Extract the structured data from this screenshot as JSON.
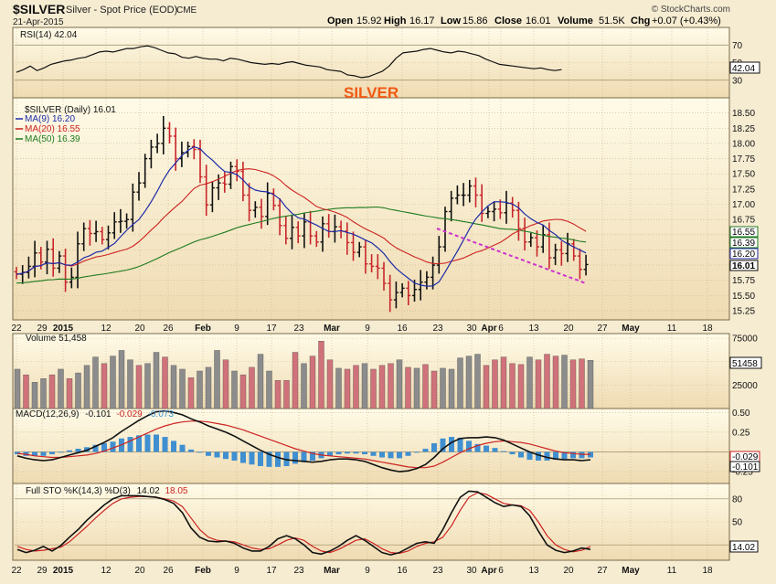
{
  "header": {
    "symbol": "$SILVER",
    "description": "Silver - Spot Price (EOD)",
    "exchange": "CME",
    "date": "21-Apr-2015",
    "brand": "© StockCharts.com",
    "ohlc": {
      "open_label": "Open",
      "open": "15.92",
      "high_label": "High",
      "high": "16.17",
      "low_label": "Low",
      "low": "15.86",
      "close_label": "Close",
      "close": "16.01",
      "volume_label": "Volume",
      "volume": "51.5K",
      "chg_label": "Chg",
      "chg": "+0.07 (+0.43%)"
    }
  },
  "annotation_text": "SILVER",
  "colors": {
    "background": "#f6ecd2",
    "panel_top": "#fffbe8",
    "panel_bottom": "#efdbb2",
    "up_bar": "#111111",
    "down_bar": "#c8262b",
    "ma9": "#1c2aa8",
    "ma20": "#cc2222",
    "ma50": "#1e7a1e",
    "volume_up": "#8c8c8c",
    "volume_down": "#d0727a",
    "histogram": "#3f8fd1",
    "trendline": "#cc33cc",
    "annotation": "#f05a14",
    "grid": "#c9b48a"
  },
  "x_axis": {
    "labels": [
      "22",
      "29",
      "2015",
      "12",
      "20",
      "26",
      "Feb",
      "9",
      "17",
      "23",
      "Mar",
      "9",
      "16",
      "23",
      "30",
      "Apr",
      "6",
      "13",
      "20",
      "27",
      "May",
      "11",
      "18"
    ],
    "bold_labels": [
      "2015",
      "Feb",
      "Mar",
      "Apr",
      "May"
    ]
  },
  "chart_data": [
    {
      "id": "rsi",
      "type": "line",
      "title": "RSI(14) 42.04",
      "last_value_label": "42.04",
      "ylim": [
        10,
        90
      ],
      "ticks": [
        "90",
        "70",
        "50",
        "30",
        "10"
      ],
      "values": [
        39,
        42,
        46,
        41,
        44,
        48,
        50,
        52,
        53,
        55,
        56,
        59,
        62,
        63,
        62,
        64,
        66,
        66,
        68,
        69,
        67,
        64,
        61,
        60,
        56,
        55,
        57,
        55,
        54,
        54,
        52,
        55,
        54,
        52,
        50,
        49,
        48,
        49,
        48,
        50,
        51,
        49,
        47,
        46,
        45,
        42,
        41,
        40,
        36,
        35,
        33,
        34,
        37,
        40,
        46,
        55,
        61,
        62,
        63,
        65,
        66,
        64,
        62,
        61,
        63,
        62,
        60,
        58,
        54,
        51,
        48,
        47,
        46,
        45,
        44,
        43,
        44,
        42,
        41,
        42
      ]
    },
    {
      "id": "price",
      "type": "ohlc",
      "title": "$SILVER (Daily) 16.01",
      "ylim": [
        15.1,
        18.75
      ],
      "ticks": [
        "18.50",
        "18.25",
        "18.00",
        "17.75",
        "17.50",
        "17.25",
        "17.00",
        "16.75",
        "16.50",
        "16.25",
        "16.00",
        "15.75",
        "15.50",
        "15.25"
      ],
      "series": [
        {
          "name": "MA(9)",
          "label": "MA(9) 16.20",
          "color": "#1c2aa8",
          "value_tag": "16.20"
        },
        {
          "name": "MA(20)",
          "label": "MA(20) 16.55",
          "color": "#cc2222",
          "value_tag": "16.55"
        },
        {
          "name": "MA(50)",
          "label": "MA(50) 16.39",
          "color": "#1e7a1e",
          "value_tag": "16.39"
        }
      ],
      "close_tag": "16.01",
      "close": [
        15.85,
        15.88,
        15.98,
        16.2,
        16.05,
        16.26,
        15.95,
        16.15,
        15.72,
        15.8,
        16.35,
        16.6,
        16.52,
        16.55,
        16.42,
        16.53,
        16.71,
        16.72,
        16.75,
        17.2,
        17.35,
        17.75,
        17.94,
        18.0,
        18.25,
        18.12,
        17.75,
        17.85,
        17.95,
        17.9,
        17.45,
        16.99,
        17.27,
        17.35,
        17.33,
        17.62,
        17.54,
        17.15,
        16.9,
        16.95,
        16.8,
        17.18,
        16.98,
        16.65,
        16.44,
        16.62,
        16.48,
        16.71,
        16.48,
        16.38,
        16.68,
        16.55,
        16.63,
        16.56,
        16.37,
        16.21,
        16.3,
        16.02,
        15.98,
        15.95,
        15.7,
        15.43,
        15.55,
        15.62,
        15.5,
        15.6,
        15.72,
        15.8,
        16.0,
        16.3,
        16.88,
        17.1,
        17.15,
        17.15,
        17.3,
        17.15,
        16.85,
        16.88,
        16.92,
        16.86,
        17.02,
        16.9,
        16.6,
        16.38,
        16.45,
        16.3,
        16.5,
        16.12,
        16.25,
        16.19,
        16.35,
        16.15,
        15.93,
        16.01
      ]
    },
    {
      "id": "volume",
      "type": "bar",
      "title": "Volume 51,458",
      "last_value_label": "51458",
      "ylim": [
        0,
        80000
      ],
      "ticks": [
        "75000",
        "50000",
        "25000"
      ],
      "values": [
        42000,
        36000,
        28000,
        32000,
        36000,
        42000,
        32000,
        38000,
        46000,
        55000,
        48000,
        56000,
        62000,
        52000,
        46000,
        48000,
        60000,
        55000,
        46000,
        42000,
        33000,
        40000,
        44000,
        62000,
        52000,
        40000,
        36000,
        44000,
        58000,
        40000,
        30000,
        30000,
        60000,
        48000,
        56000,
        72000,
        52000,
        43000,
        42000,
        46000,
        48000,
        42000,
        46000,
        48000,
        52000,
        44000,
        43000,
        47000,
        40000,
        43000,
        42000,
        54000,
        56000,
        58000,
        46000,
        52000,
        55000,
        48000,
        47000,
        55000,
        52000,
        58000,
        56000,
        57000,
        52000,
        53000,
        51458
      ],
      "up": [
        true,
        false,
        true,
        true,
        false,
        true,
        false,
        true,
        true,
        true,
        false,
        true,
        true,
        true,
        false,
        true,
        true,
        false,
        true,
        true,
        false,
        true,
        true,
        true,
        false,
        true,
        false,
        false,
        true,
        true,
        false,
        false,
        false,
        true,
        false,
        false,
        false,
        true,
        false,
        false,
        true,
        false,
        false,
        false,
        true,
        false,
        true,
        false,
        false,
        true,
        true,
        true,
        true,
        true,
        false,
        false,
        false,
        false,
        false,
        true,
        false,
        false,
        false,
        true,
        false,
        false,
        true
      ]
    },
    {
      "id": "macd",
      "type": "line",
      "title": "MACD(12,26,9) -0.101, -0.029, -0.073",
      "title_parts": {
        "name": "MACD(12,26,9)",
        "macd": "-0.101",
        "signal": "-0.029",
        "hist": "-0.073"
      },
      "ylim": [
        -0.4,
        0.55
      ],
      "ticks": [
        "0.50",
        "0.25",
        "-0.25"
      ],
      "value_tags": [
        "-0.029",
        "-0.101"
      ],
      "macd": [
        -0.05,
        -0.08,
        -0.1,
        -0.11,
        -0.1,
        -0.07,
        -0.04,
        -0.01,
        0.02,
        0.07,
        0.12,
        0.18,
        0.26,
        0.33,
        0.4,
        0.46,
        0.51,
        0.52,
        0.5,
        0.47,
        0.42,
        0.38,
        0.33,
        0.29,
        0.25,
        0.2,
        0.14,
        0.08,
        0.02,
        -0.03,
        -0.07,
        -0.1,
        -0.11,
        -0.12,
        -0.13,
        -0.12,
        -0.1,
        -0.09,
        -0.09,
        -0.1,
        -0.12,
        -0.16,
        -0.2,
        -0.23,
        -0.25,
        -0.24,
        -0.21,
        -0.16,
        -0.07,
        0.04,
        0.12,
        0.17,
        0.18,
        0.18,
        0.19,
        0.18,
        0.15,
        0.1,
        0.05,
        0.0,
        -0.04,
        -0.07,
        -0.09,
        -0.1,
        -0.1,
        -0.11,
        -0.1
      ],
      "signal": [
        -0.02,
        -0.03,
        -0.05,
        -0.06,
        -0.07,
        -0.07,
        -0.06,
        -0.05,
        -0.04,
        -0.02,
        0.01,
        0.05,
        0.09,
        0.14,
        0.19,
        0.24,
        0.29,
        0.33,
        0.36,
        0.38,
        0.39,
        0.39,
        0.38,
        0.36,
        0.34,
        0.31,
        0.28,
        0.24,
        0.2,
        0.16,
        0.12,
        0.08,
        0.04,
        0.01,
        -0.02,
        -0.04,
        -0.05,
        -0.06,
        -0.07,
        -0.08,
        -0.09,
        -0.11,
        -0.13,
        -0.15,
        -0.17,
        -0.19,
        -0.2,
        -0.2,
        -0.18,
        -0.13,
        -0.07,
        -0.01,
        0.04,
        0.08,
        0.11,
        0.13,
        0.14,
        0.13,
        0.12,
        0.1,
        0.07,
        0.04,
        0.01,
        -0.01,
        -0.02,
        -0.03,
        -0.03
      ]
    },
    {
      "id": "sto",
      "type": "line",
      "title": "Full STO %K(14,3) %D(3) 14.02, 18.05",
      "title_parts": {
        "name": "Full STO %K(14,3) %D(3)",
        "k": "14.02",
        "d": "18.05"
      },
      "ylim": [
        0,
        100
      ],
      "ticks": [
        "80",
        "50",
        "20"
      ],
      "last_value_label": "14.02",
      "k": [
        14,
        10,
        13,
        18,
        12,
        19,
        30,
        40,
        52,
        62,
        72,
        80,
        84,
        84,
        84,
        83,
        82,
        79,
        74,
        62,
        42,
        30,
        25,
        24,
        25,
        22,
        16,
        12,
        12,
        18,
        28,
        32,
        28,
        20,
        10,
        8,
        12,
        18,
        26,
        32,
        26,
        18,
        10,
        7,
        10,
        16,
        22,
        24,
        22,
        40,
        62,
        82,
        90,
        89,
        82,
        75,
        70,
        72,
        70,
        58,
        38,
        20,
        13,
        10,
        12,
        16,
        14
      ],
      "d": [
        18,
        14,
        12,
        13,
        15,
        17,
        24,
        34,
        44,
        55,
        65,
        74,
        80,
        82,
        83,
        83,
        82,
        80,
        77,
        70,
        55,
        40,
        30,
        26,
        25,
        24,
        20,
        16,
        14,
        15,
        20,
        26,
        29,
        26,
        18,
        12,
        10,
        14,
        20,
        26,
        28,
        22,
        15,
        10,
        9,
        12,
        18,
        22,
        24,
        30,
        45,
        65,
        82,
        88,
        86,
        80,
        74,
        72,
        71,
        65,
        50,
        32,
        20,
        14,
        11,
        13,
        18
      ]
    }
  ]
}
